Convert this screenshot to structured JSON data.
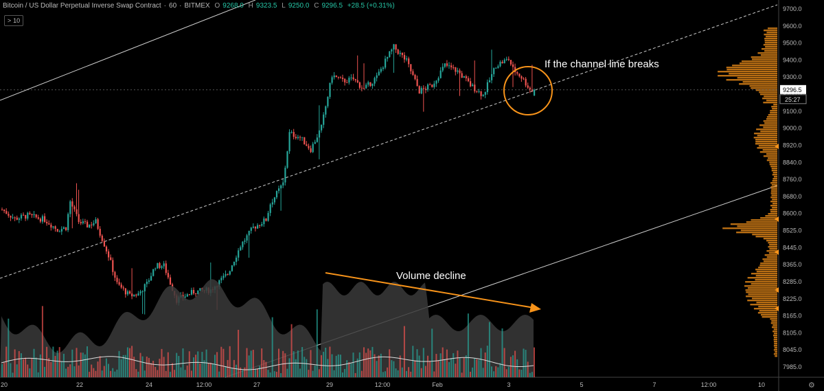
{
  "header": {
    "symbol": "Bitcoin / US Dollar Perpetual Inverse Swap Contract",
    "interval": "60",
    "exchange": "BITMEX",
    "open_label": "O",
    "open": "9268.0",
    "high_label": "H",
    "high": "9323.5",
    "low_label": "L",
    "low": "9250.0",
    "close_label": "C",
    "close": "9296.5",
    "change": "+28.5 (+0.31%)"
  },
  "collapse_button": {
    "arrow": ">",
    "count": "10"
  },
  "annotations": {
    "channel": "If the channel line breaks",
    "volume": "Volume decline"
  },
  "price_axis": {
    "labels": [
      "9700.0",
      "9600.0",
      "9500.0",
      "9400.0",
      "9300.0",
      "9200.0",
      "9100.0",
      "9000.0",
      "8920.0",
      "8840.0",
      "8760.0",
      "8680.0",
      "8600.0",
      "8525.0",
      "8445.0",
      "8365.0",
      "8285.0",
      "8225.0",
      "8165.0",
      "8105.0",
      "8045.0",
      "7985.0"
    ],
    "current_price": "9296.5",
    "countdown": "25:27"
  },
  "colors": {
    "up": "#26a69a",
    "down": "#ef5350",
    "volume_profile": "#f7931a",
    "annotation": "#f7931a",
    "trendline": "#cfcfcf"
  },
  "chart_data": {
    "type": "candlestick",
    "instrument": "XBTUSD",
    "interval": "60",
    "x_ticks": [
      "20",
      "22",
      "24",
      "12:00",
      "27",
      "29",
      "12:00",
      "Feb",
      "3",
      "5",
      "7",
      "12:00",
      "10"
    ],
    "ylim": [
      7985,
      9700
    ],
    "price_path": [
      [
        0,
        8700
      ],
      [
        6,
        8655
      ],
      [
        12,
        8670
      ],
      [
        20,
        8650
      ],
      [
        26,
        8600
      ],
      [
        30,
        8610
      ],
      [
        32,
        8740
      ],
      [
        36,
        8640
      ],
      [
        40,
        8620
      ],
      [
        44,
        8640
      ],
      [
        50,
        8470
      ],
      [
        54,
        8330
      ],
      [
        60,
        8270
      ],
      [
        64,
        8280
      ],
      [
        68,
        8330
      ],
      [
        72,
        8420
      ],
      [
        76,
        8420
      ],
      [
        82,
        8250
      ],
      [
        90,
        8290
      ],
      [
        98,
        8300
      ],
      [
        106,
        8380
      ],
      [
        112,
        8520
      ],
      [
        118,
        8610
      ],
      [
        124,
        8650
      ],
      [
        126,
        8730
      ],
      [
        132,
        8830
      ],
      [
        135,
        9080
      ],
      [
        140,
        9060
      ],
      [
        145,
        9000
      ],
      [
        150,
        9110
      ],
      [
        155,
        9370
      ],
      [
        160,
        9340
      ],
      [
        165,
        9350
      ],
      [
        170,
        9300
      ],
      [
        176,
        9360
      ],
      [
        180,
        9440
      ],
      [
        184,
        9510
      ],
      [
        190,
        9440
      ],
      [
        196,
        9290
      ],
      [
        202,
        9320
      ],
      [
        208,
        9420
      ],
      [
        214,
        9390
      ],
      [
        220,
        9320
      ],
      [
        226,
        9270
      ],
      [
        232,
        9420
      ],
      [
        238,
        9450
      ],
      [
        240,
        9400
      ],
      [
        244,
        9360
      ],
      [
        248,
        9300
      ],
      [
        250,
        9296.5
      ]
    ],
    "last_bar": {
      "open": 9268.0,
      "high": 9323.5,
      "low": 9250.0,
      "close": 9296.5
    },
    "volume": {
      "relative_trend": "declining"
    }
  }
}
